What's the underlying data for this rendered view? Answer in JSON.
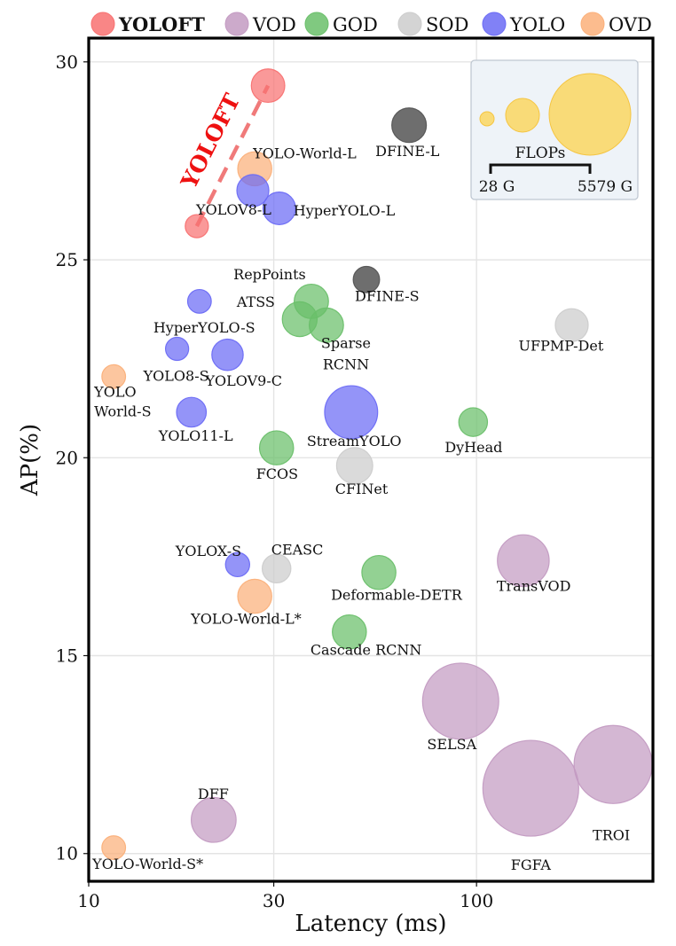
{
  "chart_data": {
    "type": "scatter",
    "xlabel": "Latency (ms)",
    "ylabel": "AP(%)",
    "x_scale": "log",
    "xlim": [
      10,
      285
    ],
    "ylim": [
      9.3,
      30.6
    ],
    "x_ticks": [
      10,
      30,
      100
    ],
    "x_tick_labels": [
      "10",
      "30",
      "100"
    ],
    "y_ticks": [
      10,
      15,
      20,
      25,
      30
    ],
    "y_tick_labels": [
      "10",
      "15",
      "20",
      "25",
      "30"
    ],
    "grid": true,
    "legend_position": "top",
    "groups": [
      {
        "name": "YOLOFT",
        "color": "#f87171"
      },
      {
        "name": "VOD",
        "color": "#c39bc2"
      },
      {
        "name": "GOD",
        "color": "#6abf6a"
      },
      {
        "name": "SOD",
        "color": "#cccccc"
      },
      {
        "name": "YOLO",
        "color": "#6b6bf5"
      },
      {
        "name": "OVD",
        "color": "#fbb07a"
      }
    ],
    "series": [
      {
        "name": "YOLOFT",
        "points": [
          {
            "label": "",
            "x": 19.0,
            "y": 25.85,
            "flops": 120
          },
          {
            "label": "",
            "x": 29.0,
            "y": 29.4,
            "flops": 400
          }
        ]
      },
      {
        "name": "VOD",
        "points": [
          {
            "label": "TransVOD",
            "x": 132,
            "y": 17.4,
            "flops": 1300
          },
          {
            "label": "SELSA",
            "x": 91,
            "y": 13.85,
            "flops": 3300
          },
          {
            "label": "FGFA",
            "x": 138,
            "y": 11.65,
            "flops": 5579
          },
          {
            "label": "TROI",
            "x": 225,
            "y": 12.25,
            "flops": 3500
          },
          {
            "label": "DFF",
            "x": 21,
            "y": 10.85,
            "flops": 900
          }
        ]
      },
      {
        "name": "GOD",
        "points": [
          {
            "label": "RepPoints",
            "x": 37.5,
            "y": 23.95,
            "flops": 430
          },
          {
            "label": "ATSS",
            "x": 35.0,
            "y": 23.5,
            "flops": 450
          },
          {
            "label": "Sparse RCNN",
            "x": 41.0,
            "y": 23.35,
            "flops": 430
          },
          {
            "label": "DyHead",
            "x": 98,
            "y": 20.9,
            "flops": 250
          },
          {
            "label": "FCOS",
            "x": 30.5,
            "y": 20.25,
            "flops": 420
          },
          {
            "label": "Deformable-DETR",
            "x": 56,
            "y": 17.1,
            "flops": 420
          },
          {
            "label": "Cascade RCNN",
            "x": 47,
            "y": 15.6,
            "flops": 420
          }
        ]
      },
      {
        "name": "SOD",
        "points": [
          {
            "label": "UFPMP-Det",
            "x": 176,
            "y": 23.35,
            "flops": 380
          },
          {
            "label": "CFINet",
            "x": 48.5,
            "y": 19.8,
            "flops": 500
          },
          {
            "label": "CEASC",
            "x": 30.5,
            "y": 17.2,
            "flops": 250
          },
          {
            "label": "DFINE-L",
            "x": 67,
            "y": 28.4,
            "flops": 440
          },
          {
            "label": "DFINE-S",
            "x": 52,
            "y": 24.5,
            "flops": 190
          }
        ]
      },
      {
        "name": "YOLO",
        "points": [
          {
            "label": "YOLOV8-L",
            "x": 26.5,
            "y": 26.75,
            "flops": 350
          },
          {
            "label": "HyperYOLO-L",
            "x": 31.0,
            "y": 26.3,
            "flops": 370
          },
          {
            "label": "HyperYOLO-S",
            "x": 19.3,
            "y": 23.95,
            "flops": 130
          },
          {
            "label": "YOLO8-S",
            "x": 16.9,
            "y": 22.75,
            "flops": 120
          },
          {
            "label": "YOLOV9-C",
            "x": 22.8,
            "y": 22.6,
            "flops": 330
          },
          {
            "label": "YOLO11-L",
            "x": 18.4,
            "y": 21.15,
            "flops": 280
          },
          {
            "label": "StreamYOLO",
            "x": 47.5,
            "y": 21.15,
            "flops": 1380
          },
          {
            "label": "YOLOX-S",
            "x": 24.2,
            "y": 17.3,
            "flops": 140
          }
        ]
      },
      {
        "name": "OVD",
        "points": [
          {
            "label": "YOLO-World-L",
            "x": 26.8,
            "y": 27.3,
            "flops": 420
          },
          {
            "label": "YOLO World-S",
            "x": 11.6,
            "y": 22.05,
            "flops": 130
          },
          {
            "label": "YOLO-World-L*",
            "x": 26.8,
            "y": 16.5,
            "flops": 420
          },
          {
            "label": "YOLO-World-S*",
            "x": 11.6,
            "y": 10.15,
            "flops": 130
          }
        ]
      }
    ],
    "annotations": [
      {
        "text": "YOLOFT",
        "type": "trend-line",
        "from": [
          19.0,
          25.85
        ],
        "to": [
          29.0,
          29.4
        ]
      }
    ],
    "size_legend": {
      "title": "FLOPs",
      "min_label": "28 G",
      "max_label": "5579 G",
      "position": "top-right"
    }
  }
}
